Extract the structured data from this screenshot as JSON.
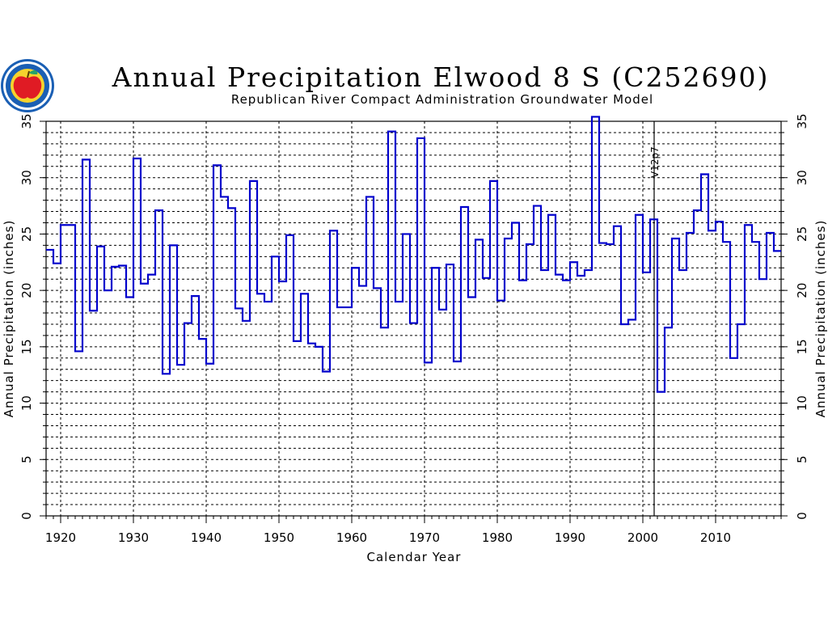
{
  "chart_data": {
    "type": "line",
    "step": true,
    "title": "Annual Precipitation Elwood 8 S (C252690)",
    "subtitle": "Republican River Compact Administration Groundwater Model",
    "xlabel": "Calendar Year",
    "ylabel": "Annual Precipitation (inches)",
    "xlim": [
      1918,
      2019
    ],
    "ylim": [
      0,
      35
    ],
    "xticks": [
      1920,
      1930,
      1940,
      1950,
      1960,
      1970,
      1980,
      1990,
      2000,
      2010
    ],
    "yticks": [
      0,
      5,
      10,
      15,
      20,
      25,
      30,
      35
    ],
    "grid": true,
    "series": [
      {
        "color": "#0000cc",
        "x": [
          1918,
          1919,
          1920,
          1921,
          1922,
          1923,
          1924,
          1925,
          1926,
          1927,
          1928,
          1929,
          1930,
          1931,
          1932,
          1933,
          1934,
          1935,
          1936,
          1937,
          1938,
          1939,
          1940,
          1941,
          1942,
          1943,
          1944,
          1945,
          1946,
          1947,
          1948,
          1949,
          1950,
          1951,
          1952,
          1953,
          1954,
          1955,
          1956,
          1957,
          1958,
          1959,
          1960,
          1961,
          1962,
          1963,
          1964,
          1965,
          1966,
          1967,
          1968,
          1969,
          1970,
          1971,
          1972,
          1973,
          1974,
          1975,
          1976,
          1977,
          1978,
          1979,
          1980,
          1981,
          1982,
          1983,
          1984,
          1985,
          1986,
          1987,
          1988,
          1989,
          1990,
          1991,
          1992,
          1993,
          1994,
          1995,
          1996,
          1997,
          1998,
          1999,
          2000,
          2001,
          2002,
          2003,
          2004,
          2005,
          2006,
          2007,
          2008,
          2009,
          2010,
          2011,
          2012,
          2013,
          2014,
          2015,
          2016,
          2017,
          2018
        ],
        "values": [
          23.6,
          22.4,
          25.8,
          25.8,
          14.6,
          31.6,
          18.2,
          23.9,
          20.0,
          22.1,
          22.2,
          19.4,
          31.7,
          20.6,
          21.4,
          27.1,
          12.6,
          24.0,
          13.4,
          17.1,
          19.5,
          15.7,
          13.5,
          31.1,
          28.3,
          27.3,
          18.4,
          17.3,
          29.7,
          19.7,
          19.0,
          23.0,
          20.8,
          24.9,
          15.5,
          19.7,
          15.3,
          15.0,
          12.8,
          25.3,
          18.5,
          18.5,
          22.0,
          20.4,
          28.3,
          20.2,
          16.7,
          34.1,
          19.0,
          25.0,
          17.1,
          33.5,
          13.6,
          22.0,
          18.3,
          22.3,
          13.7,
          27.4,
          19.4,
          24.5,
          21.1,
          29.7,
          19.1,
          24.6,
          26.0,
          20.9,
          24.1,
          27.5,
          21.8,
          26.7,
          21.4,
          20.9,
          22.5,
          21.3,
          21.8,
          35.4,
          24.2,
          24.1,
          25.7,
          17.0,
          17.4,
          26.7,
          21.6,
          26.3,
          11.0,
          16.7,
          24.6,
          21.8,
          25.1,
          27.1,
          30.3,
          25.3,
          26.1,
          24.3,
          14.0,
          17.0,
          25.8,
          24.3,
          21.0,
          25.1,
          23.5
        ]
      }
    ],
    "annotations": [
      {
        "x": 2001,
        "text": "V12p7"
      }
    ]
  },
  "logo": {
    "name": "state-seal-apple-logo",
    "ring_color": "#1a5fb4",
    "apple_color": "#e01b24"
  }
}
